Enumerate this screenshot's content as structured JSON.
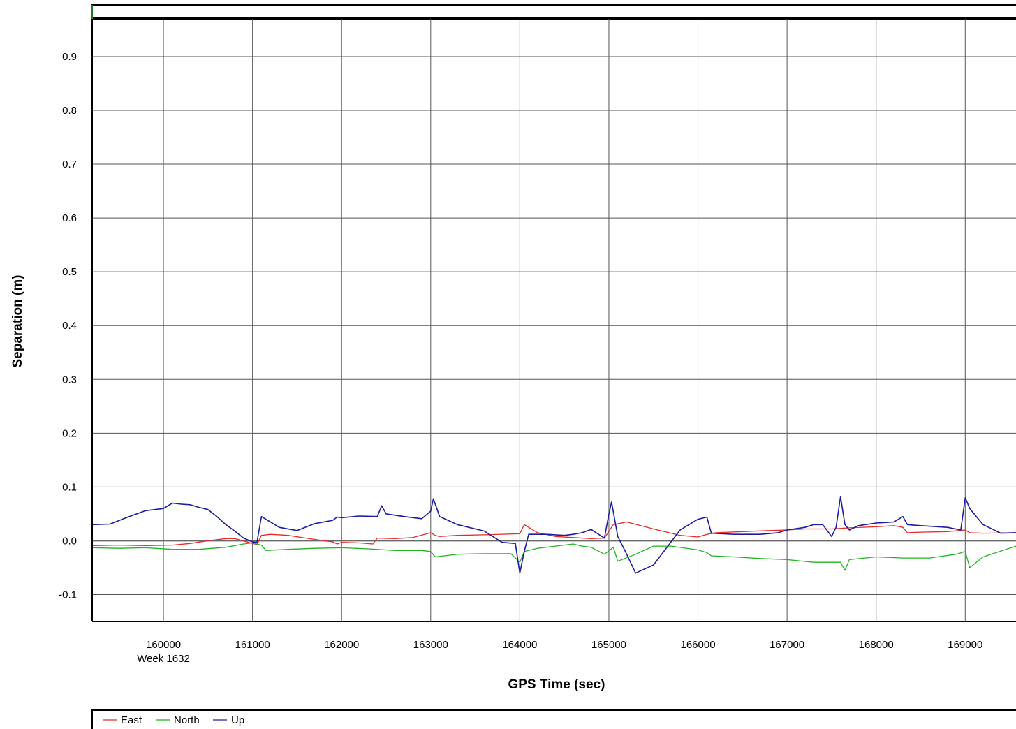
{
  "chart_data": {
    "type": "line",
    "title": "",
    "xlabel": "GPS Time (sec)",
    "ylabel": "Separation (m)",
    "week_label": "Week 1632",
    "xlim": [
      159200,
      169570
    ],
    "ylim": [
      -0.15,
      0.97
    ],
    "x_ticks": [
      160000,
      161000,
      162000,
      163000,
      164000,
      165000,
      166000,
      167000,
      168000,
      169000
    ],
    "x_tick_labels": [
      "160000",
      "161000",
      "162000",
      "163000",
      "164000",
      "165000",
      "166000",
      "167000",
      "168000",
      "169000"
    ],
    "y_ticks": [
      -0.1,
      0.0,
      0.1,
      0.2,
      0.3,
      0.4,
      0.5,
      0.6,
      0.7,
      0.8,
      0.9
    ],
    "y_tick_labels": [
      "-0.1",
      "0.0",
      "0.1",
      "0.2",
      "0.3",
      "0.4",
      "0.5",
      "0.6",
      "0.7",
      "0.8",
      "0.9"
    ],
    "grid": true,
    "legend_position": "bottom",
    "series": [
      {
        "name": "East",
        "color": "#e8292a",
        "x": [
          159200,
          159500,
          159800,
          160100,
          160300,
          160500,
          160700,
          160800,
          161000,
          161050,
          161100,
          161200,
          161400,
          161600,
          161800,
          161900,
          161950,
          162000,
          162200,
          162350,
          162400,
          162600,
          162800,
          163000,
          163050,
          163100,
          163300,
          163600,
          164000,
          164050,
          164200,
          164400,
          164600,
          164800,
          164950,
          165050,
          165200,
          165500,
          165800,
          166000,
          166100,
          166200,
          166500,
          166800,
          167000,
          167200,
          167500,
          167700,
          168000,
          168200,
          168300,
          168350,
          168500,
          168800,
          169000,
          169050,
          169200,
          169570
        ],
        "y": [
          -0.009,
          -0.008,
          -0.009,
          -0.008,
          -0.005,
          0.0,
          0.004,
          0.004,
          -0.005,
          -0.007,
          0.01,
          0.012,
          0.01,
          0.005,
          0.0,
          -0.002,
          -0.006,
          -0.003,
          -0.004,
          -0.006,
          0.005,
          0.004,
          0.006,
          0.015,
          0.01,
          0.008,
          0.01,
          0.011,
          0.013,
          0.03,
          0.015,
          0.008,
          0.006,
          0.004,
          0.005,
          0.03,
          0.035,
          0.022,
          0.01,
          0.007,
          0.012,
          0.015,
          0.017,
          0.019,
          0.02,
          0.022,
          0.022,
          0.024,
          0.026,
          0.028,
          0.025,
          0.015,
          0.016,
          0.017,
          0.02,
          0.015,
          0.014,
          0.015
        ]
      },
      {
        "name": "North",
        "color": "#22b422",
        "x": [
          159200,
          159500,
          159800,
          160100,
          160400,
          160700,
          160900,
          161000,
          161100,
          161150,
          161400,
          161700,
          162000,
          162300,
          162600,
          162900,
          163000,
          163050,
          163300,
          163600,
          163900,
          164000,
          164050,
          164200,
          164400,
          164600,
          164700,
          164800,
          164950,
          165050,
          165100,
          165300,
          165500,
          165700,
          166000,
          166100,
          166150,
          166400,
          166700,
          167000,
          167300,
          167600,
          167650,
          167700,
          168000,
          168300,
          168600,
          168900,
          169000,
          169050,
          169200,
          169570
        ],
        "y": [
          -0.013,
          -0.014,
          -0.013,
          -0.016,
          -0.016,
          -0.012,
          -0.006,
          -0.004,
          -0.008,
          -0.018,
          -0.016,
          -0.014,
          -0.013,
          -0.015,
          -0.018,
          -0.018,
          -0.02,
          -0.03,
          -0.025,
          -0.024,
          -0.024,
          -0.04,
          -0.02,
          -0.014,
          -0.01,
          -0.006,
          -0.01,
          -0.012,
          -0.025,
          -0.012,
          -0.038,
          -0.025,
          -0.01,
          -0.01,
          -0.017,
          -0.022,
          -0.028,
          -0.03,
          -0.033,
          -0.035,
          -0.04,
          -0.04,
          -0.055,
          -0.035,
          -0.03,
          -0.032,
          -0.032,
          -0.025,
          -0.02,
          -0.05,
          -0.03,
          -0.01
        ]
      },
      {
        "name": "Up",
        "color": "#1c1ca2",
        "x": [
          159200,
          159400,
          159600,
          159800,
          160000,
          160050,
          160100,
          160200,
          160300,
          160400,
          160500,
          160600,
          160700,
          160800,
          160900,
          161000,
          161050,
          161100,
          161150,
          161300,
          161500,
          161700,
          161900,
          161950,
          162000,
          162200,
          162400,
          162450,
          162500,
          162700,
          162900,
          163000,
          163030,
          163100,
          163300,
          163600,
          163800,
          163950,
          164000,
          164050,
          164100,
          164300,
          164500,
          164600,
          164700,
          164800,
          164950,
          165000,
          165030,
          165100,
          165200,
          165300,
          165500,
          165800,
          166000,
          166100,
          166150,
          166400,
          166700,
          166900,
          167000,
          167200,
          167300,
          167400,
          167500,
          167550,
          167600,
          167650,
          167700,
          167800,
          168000,
          168200,
          168300,
          168350,
          168500,
          168800,
          168950,
          169000,
          169050,
          169200,
          169400,
          169570
        ],
        "y": [
          0.03,
          0.031,
          0.044,
          0.056,
          0.06,
          0.065,
          0.07,
          0.068,
          0.067,
          0.062,
          0.058,
          0.045,
          0.03,
          0.018,
          0.005,
          -0.002,
          -0.003,
          0.045,
          0.04,
          0.025,
          0.019,
          0.032,
          0.038,
          0.044,
          0.043,
          0.046,
          0.045,
          0.065,
          0.05,
          0.045,
          0.041,
          0.055,
          0.078,
          0.045,
          0.03,
          0.018,
          -0.003,
          -0.005,
          -0.06,
          -0.02,
          0.012,
          0.012,
          0.01,
          0.012,
          0.015,
          0.021,
          0.005,
          0.05,
          0.072,
          0.008,
          -0.025,
          -0.06,
          -0.045,
          0.02,
          0.04,
          0.044,
          0.014,
          0.012,
          0.012,
          0.015,
          0.02,
          0.025,
          0.03,
          0.03,
          0.008,
          0.025,
          0.082,
          0.03,
          0.02,
          0.028,
          0.033,
          0.035,
          0.045,
          0.03,
          0.028,
          0.025,
          0.02,
          0.08,
          0.06,
          0.03,
          0.014,
          0.015
        ]
      }
    ]
  }
}
